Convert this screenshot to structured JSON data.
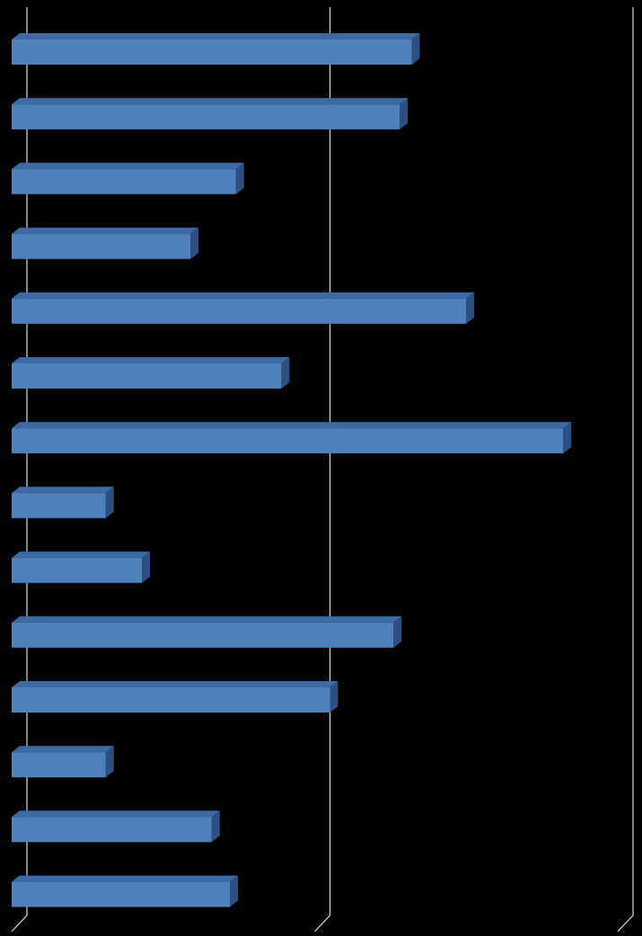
{
  "chart_data": {
    "type": "bar3d_horizontal",
    "categories": [
      null,
      null,
      null,
      null,
      null,
      null,
      null,
      null,
      null,
      null,
      null,
      null,
      null,
      null
    ],
    "values": [
      1.32,
      1.28,
      0.74,
      0.59,
      1.5,
      0.89,
      1.82,
      0.31,
      0.43,
      1.26,
      1.05,
      0.31,
      0.66,
      0.72
    ],
    "color": "#4f81bd",
    "xlim": [
      0,
      2
    ],
    "xticks": [
      0,
      1,
      2
    ],
    "grid": true
  }
}
